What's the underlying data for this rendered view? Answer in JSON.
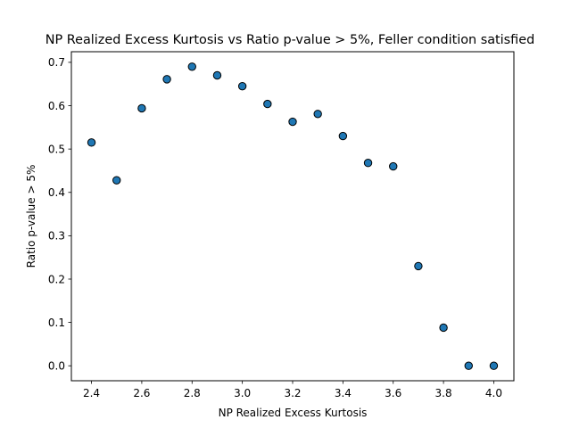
{
  "chart_data": {
    "type": "scatter",
    "title": "NP Realized Excess Kurtosis vs Ratio p-value > 5%, Feller condition satisfied",
    "xlabel": "NP Realized Excess Kurtosis",
    "ylabel": "Ratio p-value > 5%",
    "xlim": [
      2.32,
      4.08
    ],
    "ylim": [
      -0.0345,
      0.7245
    ],
    "xticks": [
      "2.4",
      "2.6",
      "2.8",
      "3.0",
      "3.2",
      "3.4",
      "3.6",
      "3.8",
      "4.0"
    ],
    "yticks": [
      "0.0",
      "0.1",
      "0.2",
      "0.3",
      "0.4",
      "0.5",
      "0.6",
      "0.7"
    ],
    "grid": false,
    "marker_color": "#1f77b4",
    "marker_edge_color": "#000000",
    "points": [
      {
        "x": 2.4,
        "y": 0.515
      },
      {
        "x": 2.5,
        "y": 0.428
      },
      {
        "x": 2.6,
        "y": 0.594
      },
      {
        "x": 2.7,
        "y": 0.661
      },
      {
        "x": 2.8,
        "y": 0.69
      },
      {
        "x": 2.9,
        "y": 0.67
      },
      {
        "x": 3.0,
        "y": 0.645
      },
      {
        "x": 3.1,
        "y": 0.604
      },
      {
        "x": 3.2,
        "y": 0.563
      },
      {
        "x": 3.3,
        "y": 0.581
      },
      {
        "x": 3.4,
        "y": 0.53
      },
      {
        "x": 3.5,
        "y": 0.468
      },
      {
        "x": 3.6,
        "y": 0.46
      },
      {
        "x": 3.7,
        "y": 0.23
      },
      {
        "x": 3.8,
        "y": 0.088
      },
      {
        "x": 3.9,
        "y": 0.0
      },
      {
        "x": 4.0,
        "y": 0.0
      }
    ]
  }
}
